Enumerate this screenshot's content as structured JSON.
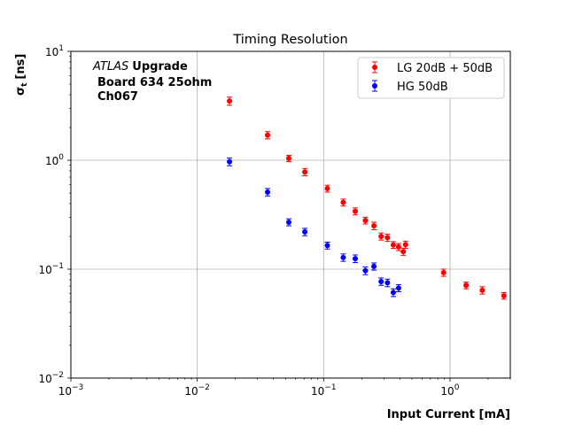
{
  "chart_data": {
    "type": "scatter",
    "title": "Timing Resolution",
    "xlabel": "Input Current [mA]",
    "ylabel_main": "σ",
    "ylabel_sub": "t",
    "ylabel_unit": "[ns]",
    "xscale": "log",
    "yscale": "log",
    "xlim": [
      0.001,
      3.0
    ],
    "ylim": [
      0.01,
      10
    ],
    "grid": true,
    "x_ticks": [
      {
        "value": 0.001,
        "base": "10",
        "exp": "−3"
      },
      {
        "value": 0.01,
        "base": "10",
        "exp": "−2"
      },
      {
        "value": 0.1,
        "base": "10",
        "exp": "−1"
      },
      {
        "value": 1,
        "base": "10",
        "exp": "0"
      }
    ],
    "y_ticks": [
      {
        "value": 0.01,
        "base": "10",
        "exp": "−2"
      },
      {
        "value": 0.1,
        "base": "10",
        "exp": "−1"
      },
      {
        "value": 1,
        "base": "10",
        "exp": "0"
      },
      {
        "value": 10,
        "base": "10",
        "exp": "1"
      }
    ],
    "annotation": {
      "atlas": "ATLAS",
      "line1_rest": "Upgrade",
      "line2": "Board 634 25ohm",
      "line3": "Ch067"
    },
    "legend_position": "top-right",
    "series": [
      {
        "name": "LG 20dB + 50dB",
        "color": "#ff0000",
        "x": [
          0.018,
          0.036,
          0.053,
          0.071,
          0.107,
          0.143,
          0.178,
          0.214,
          0.25,
          0.285,
          0.32,
          0.356,
          0.392,
          0.427,
          0.445,
          0.89,
          1.34,
          1.8,
          2.67
        ],
        "y": [
          3.5,
          1.7,
          1.04,
          0.78,
          0.55,
          0.41,
          0.34,
          0.28,
          0.25,
          0.2,
          0.195,
          0.167,
          0.16,
          0.145,
          0.168,
          0.093,
          0.071,
          0.064,
          0.057
        ],
        "err": [
          0.3,
          0.13,
          0.07,
          0.06,
          0.04,
          0.03,
          0.025,
          0.02,
          0.02,
          0.015,
          0.015,
          0.012,
          0.012,
          0.011,
          0.013,
          0.007,
          0.005,
          0.005,
          0.004
        ]
      },
      {
        "name": "HG 50dB",
        "color": "#0000ff",
        "x": [
          0.018,
          0.036,
          0.053,
          0.071,
          0.107,
          0.143,
          0.178,
          0.214,
          0.25,
          0.285,
          0.32,
          0.356,
          0.392
        ],
        "y": [
          0.97,
          0.51,
          0.27,
          0.22,
          0.165,
          0.128,
          0.125,
          0.097,
          0.106,
          0.077,
          0.075,
          0.061,
          0.067
        ],
        "err": [
          0.08,
          0.04,
          0.02,
          0.017,
          0.012,
          0.01,
          0.01,
          0.008,
          0.008,
          0.006,
          0.006,
          0.005,
          0.005
        ]
      }
    ]
  }
}
